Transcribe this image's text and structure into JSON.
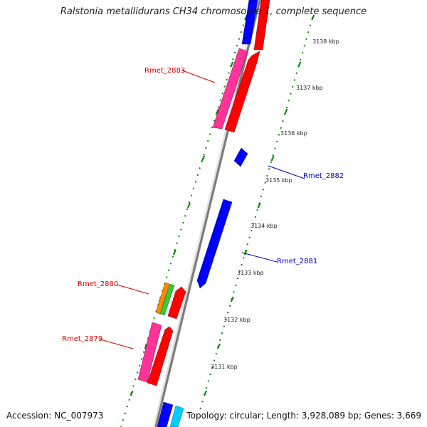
{
  "title": "Ralstonia metallidurans CH34 chromosome 1, complete sequence",
  "accession": "Accession: NC_007973",
  "topology": "Topology: circular; Length: 3,928,089 bp; Genes: 3,669",
  "ticks": [
    {
      "label": "3131 kbp"
    },
    {
      "label": "3132 kbp"
    },
    {
      "label": "3133 kbp"
    },
    {
      "label": "3134 kbp"
    },
    {
      "label": "3135 kbp"
    },
    {
      "label": "3136 kbp"
    },
    {
      "label": "3137 kbp"
    },
    {
      "label": "3138 kbp"
    }
  ],
  "genes": [
    {
      "name": "Rmet_2879",
      "color": "#dd0000"
    },
    {
      "name": "Rmet_2880",
      "color": "#dd0000"
    },
    {
      "name": "Rmet_2881",
      "color": "#0000bb"
    },
    {
      "name": "Rmet_2882",
      "color": "#0000bb"
    },
    {
      "name": "Rmet_2883",
      "color": "#dd0000"
    }
  ],
  "colors": {
    "forward_strand": "#ff0000",
    "forward_strand_alt": "#ff3399",
    "reverse_strand": "#0000ff",
    "reverse_strand_alt": "#00ccff",
    "orange_track": "#ff8800",
    "green_track": "#33cc33",
    "backbone": "#888888",
    "scale": "#008800"
  }
}
